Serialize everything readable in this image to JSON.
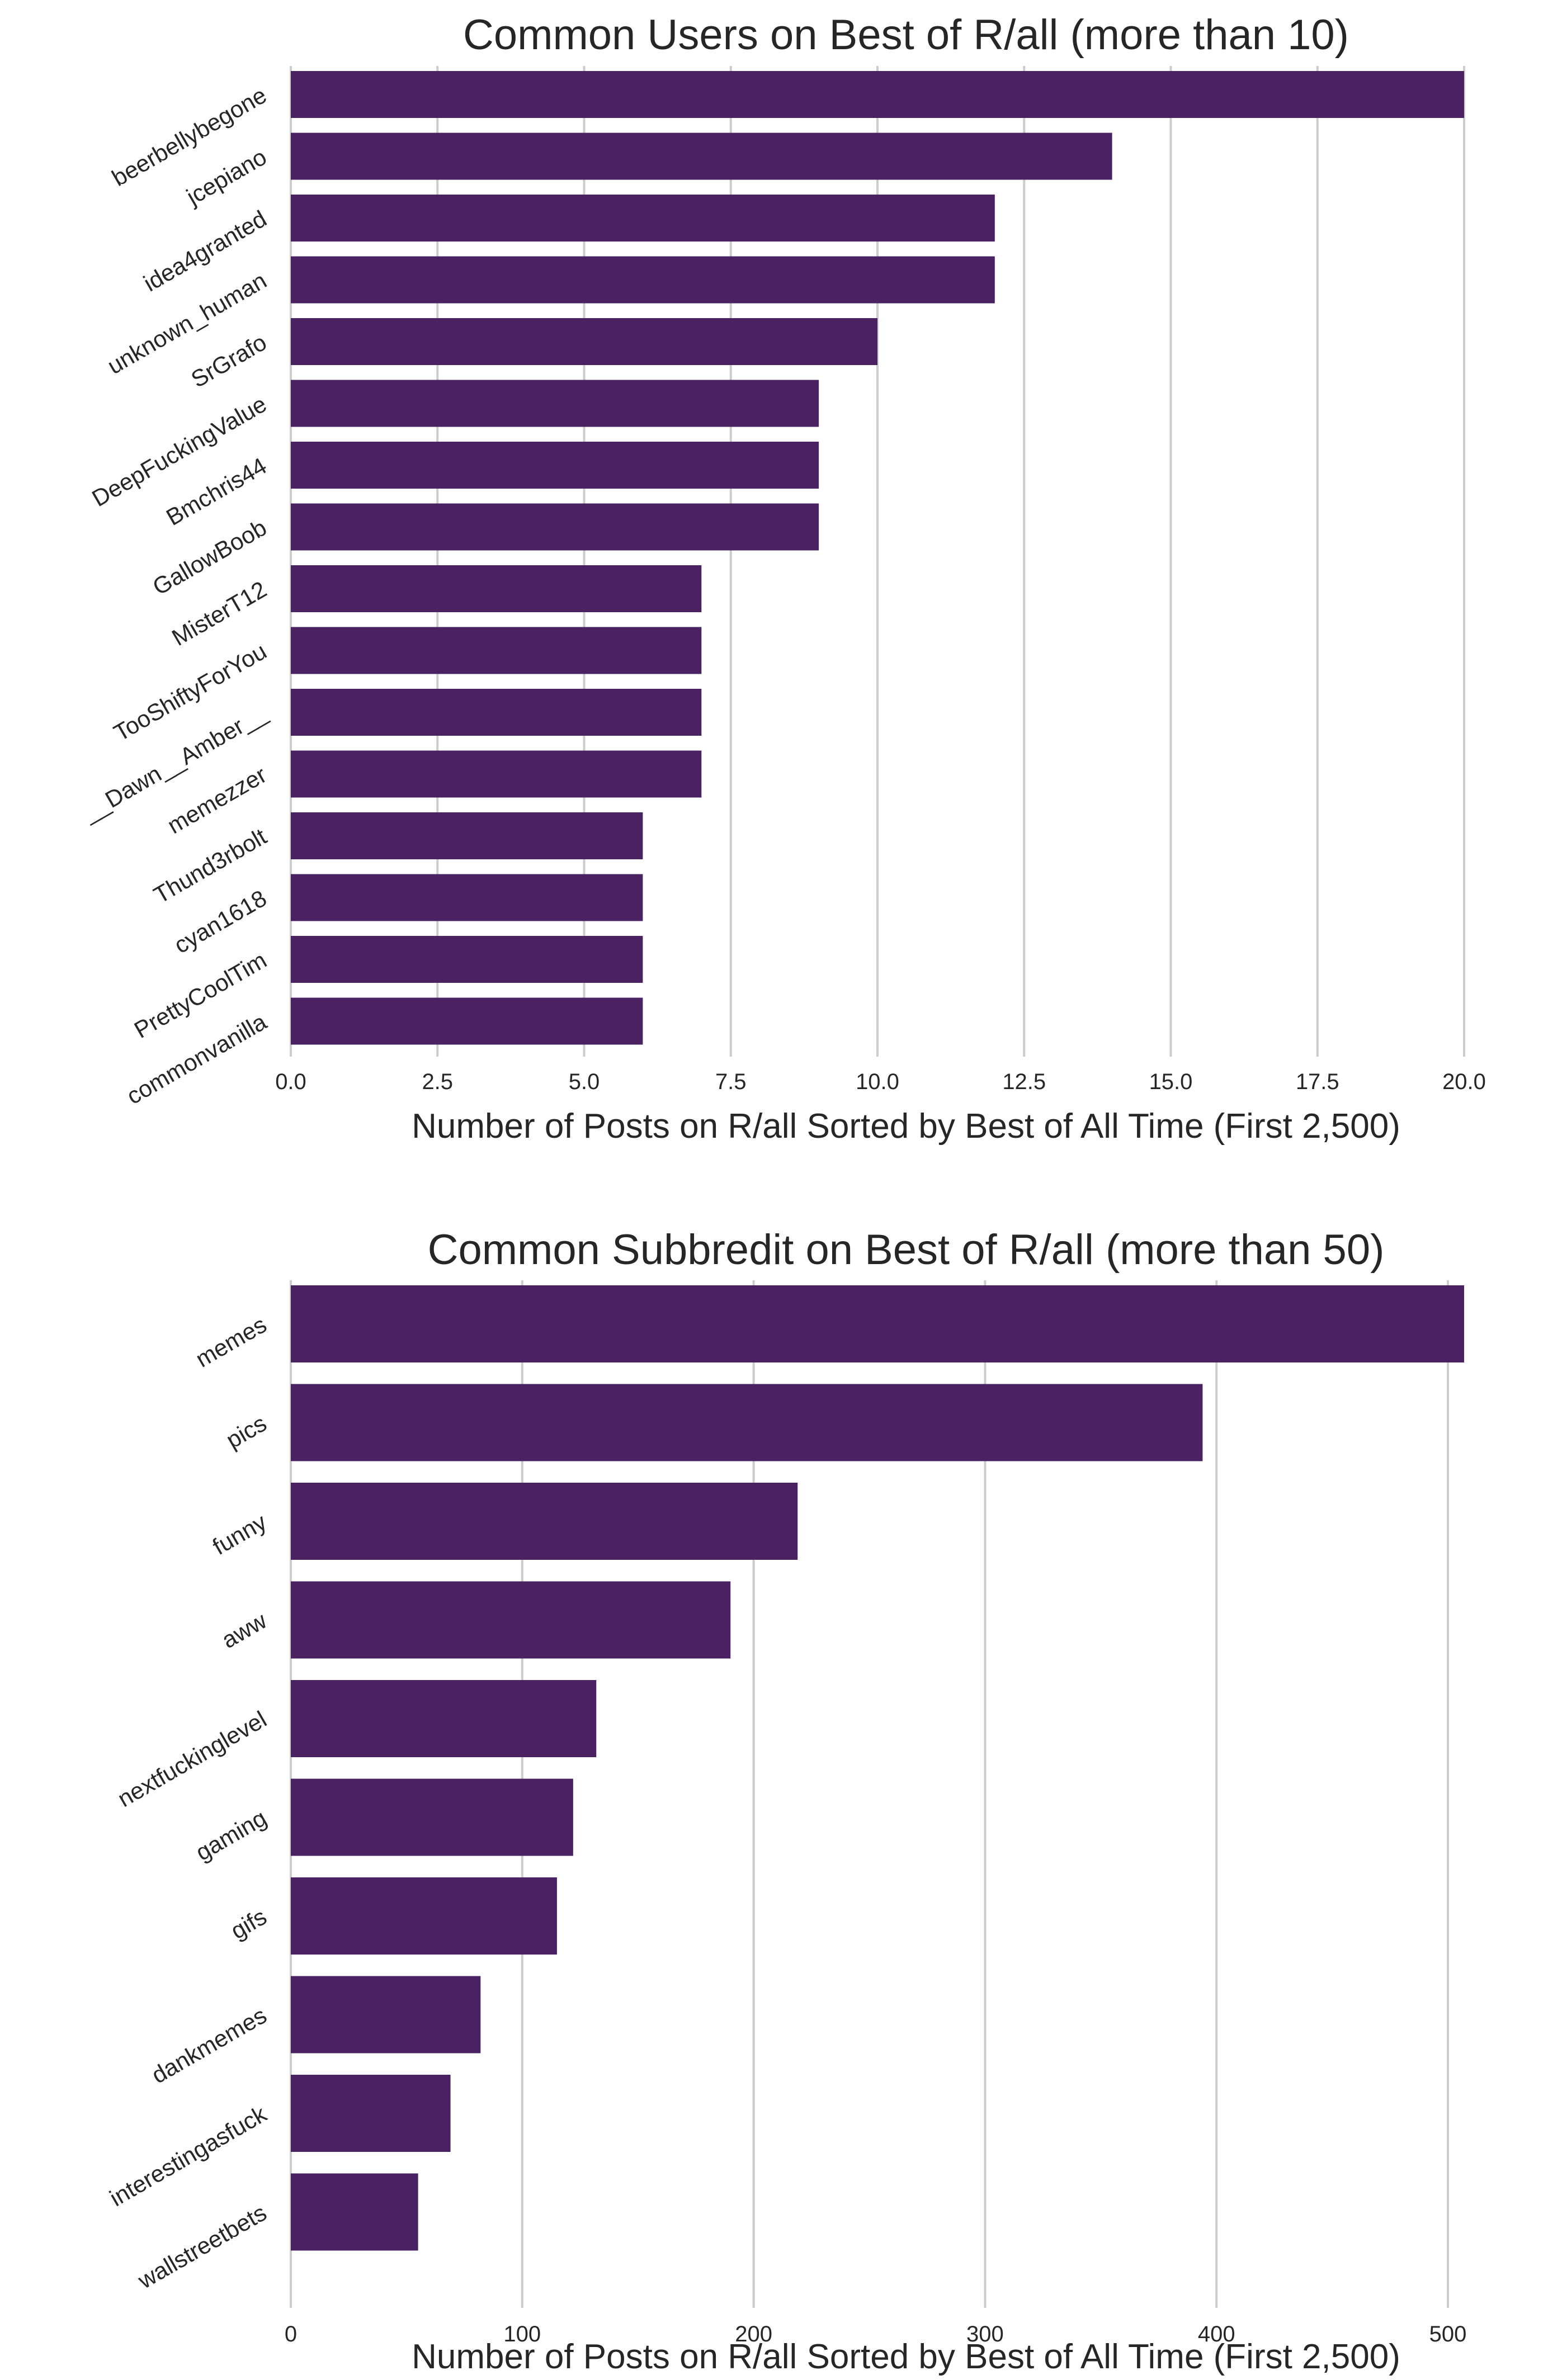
{
  "colors": {
    "bar": "#4a2161",
    "grid": "#cccccc",
    "text": "#262626"
  },
  "chart_data": [
    {
      "type": "bar",
      "orientation": "horizontal",
      "title": "Common Users on Best of R/all (more than 10)",
      "xlabel": "Number of Posts on R/all Sorted by Best of All Time (First 2,500)",
      "ylabel": "",
      "xlim": [
        0,
        20
      ],
      "xticks": [
        0,
        2.5,
        5,
        7.5,
        10,
        12.5,
        15,
        17.5,
        20
      ],
      "xtick_labels": [
        "0.0",
        "2.5",
        "5.0",
        "7.5",
        "10.0",
        "12.5",
        "15.0",
        "17.5",
        "20.0"
      ],
      "grid": "vertical",
      "categories": [
        "beerbellybegone",
        "jcepiano",
        "idea4granted",
        "unknown_human",
        "SrGrafo",
        "DeepFuckingValue",
        "Bmchris44",
        "GallowBoob",
        "MisterT12",
        "TooShiftyForYou",
        "__Dawn__Amber__",
        "memezzer",
        "Thund3rbolt",
        "cyan1618",
        "PrettyCoolTim",
        "commonvanilla"
      ],
      "values": [
        20,
        14,
        12,
        12,
        10,
        9,
        9,
        9,
        7,
        7,
        7,
        7,
        6,
        6,
        6,
        6
      ]
    },
    {
      "type": "bar",
      "orientation": "horizontal",
      "title": "Common Subbredit on Best of R/all (more than 50)",
      "xlabel": "Number of Posts on R/all Sorted by Best of All Time (First 2,500)",
      "ylabel": "",
      "xlim": [
        0,
        507
      ],
      "xticks": [
        0,
        100,
        200,
        300,
        400,
        500
      ],
      "xtick_labels": [
        "0",
        "100",
        "200",
        "300",
        "400",
        "500"
      ],
      "grid": "vertical",
      "categories": [
        "memes",
        "pics",
        "funny",
        "aww",
        "nextfuckinglevel",
        "gaming",
        "gifs",
        "dankmemes",
        "interestingasfuck",
        "wallstreetbets"
      ],
      "values": [
        507,
        394,
        219,
        190,
        132,
        122,
        115,
        82,
        69,
        55
      ]
    }
  ]
}
